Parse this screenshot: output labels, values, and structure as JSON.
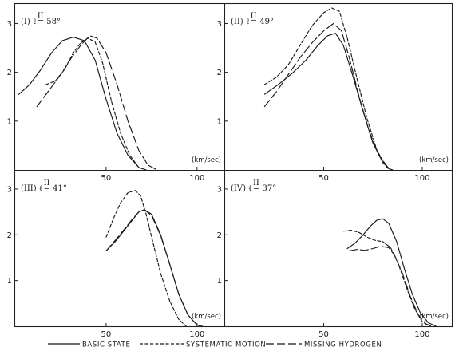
{
  "chart_data": {
    "type": "line",
    "grid": false,
    "legend": {
      "position": "bottom",
      "entries": [
        {
          "label": "BASIC STATE",
          "style": "solid"
        },
        {
          "label": "SYSTEMATIC MOTION",
          "style": "dashed"
        },
        {
          "label": "MISSING HYDROGEN",
          "style": "long-dash"
        }
      ]
    },
    "panels": [
      {
        "id": "I",
        "title": "(I) ℓ",
        "title_sup": "II",
        "title_value": "= 58°",
        "unit_label": "(km/sec)",
        "xlim": [
          0,
          115
        ],
        "ylim": [
          0,
          3.4
        ],
        "x_ticks": [
          "50",
          "100"
        ],
        "y_ticks": [
          "1",
          "2",
          "3"
        ],
        "series": [
          {
            "name": "BASIC STATE",
            "style": "solid",
            "points": [
              [
                2,
                1.55
              ],
              [
                8,
                1.75
              ],
              [
                14,
                2.05
              ],
              [
                20,
                2.4
              ],
              [
                26,
                2.65
              ],
              [
                32,
                2.72
              ],
              [
                38,
                2.65
              ],
              [
                44,
                2.25
              ],
              [
                50,
                1.45
              ],
              [
                56,
                0.75
              ],
              [
                62,
                0.3
              ],
              [
                68,
                0.05
              ],
              [
                72,
                0.0
              ]
            ]
          },
          {
            "name": "SYSTEMATIC MOTION",
            "style": "dashed",
            "points": [
              [
                17,
                1.75
              ],
              [
                22,
                1.82
              ],
              [
                27,
                2.05
              ],
              [
                32,
                2.4
              ],
              [
                36,
                2.6
              ],
              [
                40,
                2.7
              ],
              [
                44,
                2.62
              ],
              [
                48,
                2.2
              ],
              [
                53,
                1.4
              ],
              [
                58,
                0.75
              ],
              [
                63,
                0.3
              ],
              [
                68,
                0.05
              ],
              [
                72,
                0.0
              ]
            ]
          },
          {
            "name": "MISSING HYDROGEN",
            "style": "long-dash",
            "points": [
              [
                12,
                1.3
              ],
              [
                18,
                1.6
              ],
              [
                25,
                1.95
              ],
              [
                31,
                2.3
              ],
              [
                36,
                2.55
              ],
              [
                41,
                2.75
              ],
              [
                45,
                2.7
              ],
              [
                50,
                2.4
              ],
              [
                56,
                1.75
              ],
              [
                62,
                1.0
              ],
              [
                68,
                0.4
              ],
              [
                73,
                0.1
              ],
              [
                78,
                0.0
              ]
            ]
          }
        ]
      },
      {
        "id": "II",
        "title": "(II) ℓ",
        "title_sup": "II",
        "title_value": "= 49°",
        "unit_label": "(km/sec)",
        "xlim": [
          0,
          115
        ],
        "ylim": [
          0,
          3.4
        ],
        "x_ticks": [
          "50",
          "100"
        ],
        "y_ticks": [
          "1",
          "2",
          "3"
        ],
        "series": [
          {
            "name": "BASIC STATE",
            "style": "solid",
            "points": [
              [
                20,
                1.55
              ],
              [
                27,
                1.75
              ],
              [
                34,
                1.98
              ],
              [
                41,
                2.25
              ],
              [
                47,
                2.55
              ],
              [
                52,
                2.75
              ],
              [
                56,
                2.8
              ],
              [
                60,
                2.55
              ],
              [
                65,
                1.9
              ],
              [
                70,
                1.2
              ],
              [
                75,
                0.55
              ],
              [
                80,
                0.15
              ],
              [
                84,
                0.0
              ]
            ]
          },
          {
            "name": "SYSTEMATIC MOTION",
            "style": "dashed",
            "points": [
              [
                20,
                1.75
              ],
              [
                26,
                1.9
              ],
              [
                32,
                2.15
              ],
              [
                38,
                2.55
              ],
              [
                44,
                2.95
              ],
              [
                50,
                3.22
              ],
              [
                54,
                3.32
              ],
              [
                58,
                3.25
              ],
              [
                62,
                2.7
              ],
              [
                67,
                1.85
              ],
              [
                72,
                1.05
              ],
              [
                77,
                0.4
              ],
              [
                82,
                0.05
              ],
              [
                84,
                0.0
              ]
            ]
          },
          {
            "name": "MISSING HYDROGEN",
            "style": "long-dash",
            "points": [
              [
                20,
                1.3
              ],
              [
                26,
                1.6
              ],
              [
                32,
                1.95
              ],
              [
                38,
                2.3
              ],
              [
                44,
                2.6
              ],
              [
                50,
                2.85
              ],
              [
                55,
                3.0
              ],
              [
                59,
                2.85
              ],
              [
                63,
                2.3
              ],
              [
                68,
                1.5
              ],
              [
                73,
                0.8
              ],
              [
                78,
                0.3
              ],
              [
                83,
                0.03
              ],
              [
                85,
                0.0
              ]
            ]
          }
        ]
      },
      {
        "id": "III",
        "title": "(III) ℓ",
        "title_sup": "II",
        "title_value": "= 41°",
        "unit_label": "(km/sec)",
        "xlim": [
          0,
          115
        ],
        "ylim": [
          0,
          3.4
        ],
        "x_ticks": [
          "50",
          "100"
        ],
        "y_ticks": [
          "1",
          "2",
          "3"
        ],
        "series": [
          {
            "name": "BASIC STATE",
            "style": "solid",
            "points": [
              [
                50,
                1.65
              ],
              [
                55,
                1.85
              ],
              [
                60,
                2.1
              ],
              [
                64,
                2.3
              ],
              [
                68,
                2.5
              ],
              [
                71,
                2.55
              ],
              [
                75,
                2.45
              ],
              [
                80,
                2.0
              ],
              [
                85,
                1.35
              ],
              [
                90,
                0.7
              ],
              [
                95,
                0.25
              ],
              [
                100,
                0.03
              ],
              [
                102,
                0.0
              ]
            ]
          },
          {
            "name": "SYSTEMATIC MOTION",
            "style": "dashed",
            "points": [
              [
                50,
                1.95
              ],
              [
                54,
                2.35
              ],
              [
                58,
                2.7
              ],
              [
                62,
                2.92
              ],
              [
                66,
                2.97
              ],
              [
                69,
                2.85
              ],
              [
                72,
                2.45
              ],
              [
                76,
                1.8
              ],
              [
                80,
                1.15
              ],
              [
                85,
                0.55
              ],
              [
                90,
                0.15
              ],
              [
                94,
                0.0
              ]
            ]
          },
          {
            "name": "MISSING HYDROGEN",
            "style": "long-dash",
            "points": [
              [
                50,
                1.65
              ],
              [
                55,
                1.88
              ],
              [
                60,
                2.12
              ],
              [
                64,
                2.32
              ],
              [
                68,
                2.5
              ],
              [
                71,
                2.55
              ],
              [
                75,
                2.42
              ],
              [
                80,
                1.98
              ],
              [
                85,
                1.35
              ],
              [
                90,
                0.7
              ],
              [
                95,
                0.25
              ],
              [
                100,
                0.03
              ],
              [
                103,
                0.0
              ]
            ]
          }
        ]
      },
      {
        "id": "IV",
        "title": "(IV) ℓ",
        "title_sup": "II",
        "title_value": "= 37°",
        "unit_label": "(km/sec)",
        "xlim": [
          0,
          115
        ],
        "ylim": [
          0,
          3.4
        ],
        "x_ticks": [
          "50",
          "100"
        ],
        "y_ticks": [
          "1",
          "2",
          "3"
        ],
        "series": [
          {
            "name": "BASIC STATE",
            "style": "solid",
            "points": [
              [
                62,
                1.7
              ],
              [
                66,
                1.82
              ],
              [
                70,
                2.0
              ],
              [
                74,
                2.2
              ],
              [
                77,
                2.32
              ],
              [
                80,
                2.35
              ],
              [
                83,
                2.25
              ],
              [
                87,
                1.85
              ],
              [
                91,
                1.25
              ],
              [
                95,
                0.7
              ],
              [
                99,
                0.3
              ],
              [
                103,
                0.08
              ],
              [
                107,
                0.0
              ]
            ]
          },
          {
            "name": "SYSTEMATIC MOTION",
            "style": "dashed",
            "points": [
              [
                60,
                2.08
              ],
              [
                64,
                2.1
              ],
              [
                68,
                2.05
              ],
              [
                72,
                1.95
              ],
              [
                76,
                1.88
              ],
              [
                80,
                1.85
              ],
              [
                84,
                1.72
              ],
              [
                88,
                1.35
              ],
              [
                92,
                0.85
              ],
              [
                96,
                0.4
              ],
              [
                100,
                0.1
              ],
              [
                104,
                0.0
              ]
            ]
          },
          {
            "name": "MISSING HYDROGEN",
            "style": "long-dash",
            "points": [
              [
                63,
                1.65
              ],
              [
                67,
                1.68
              ],
              [
                71,
                1.66
              ],
              [
                75,
                1.7
              ],
              [
                79,
                1.75
              ],
              [
                83,
                1.72
              ],
              [
                86,
                1.55
              ],
              [
                90,
                1.15
              ],
              [
                94,
                0.65
              ],
              [
                98,
                0.25
              ],
              [
                102,
                0.05
              ],
              [
                105,
                0.0
              ]
            ]
          }
        ]
      }
    ]
  }
}
